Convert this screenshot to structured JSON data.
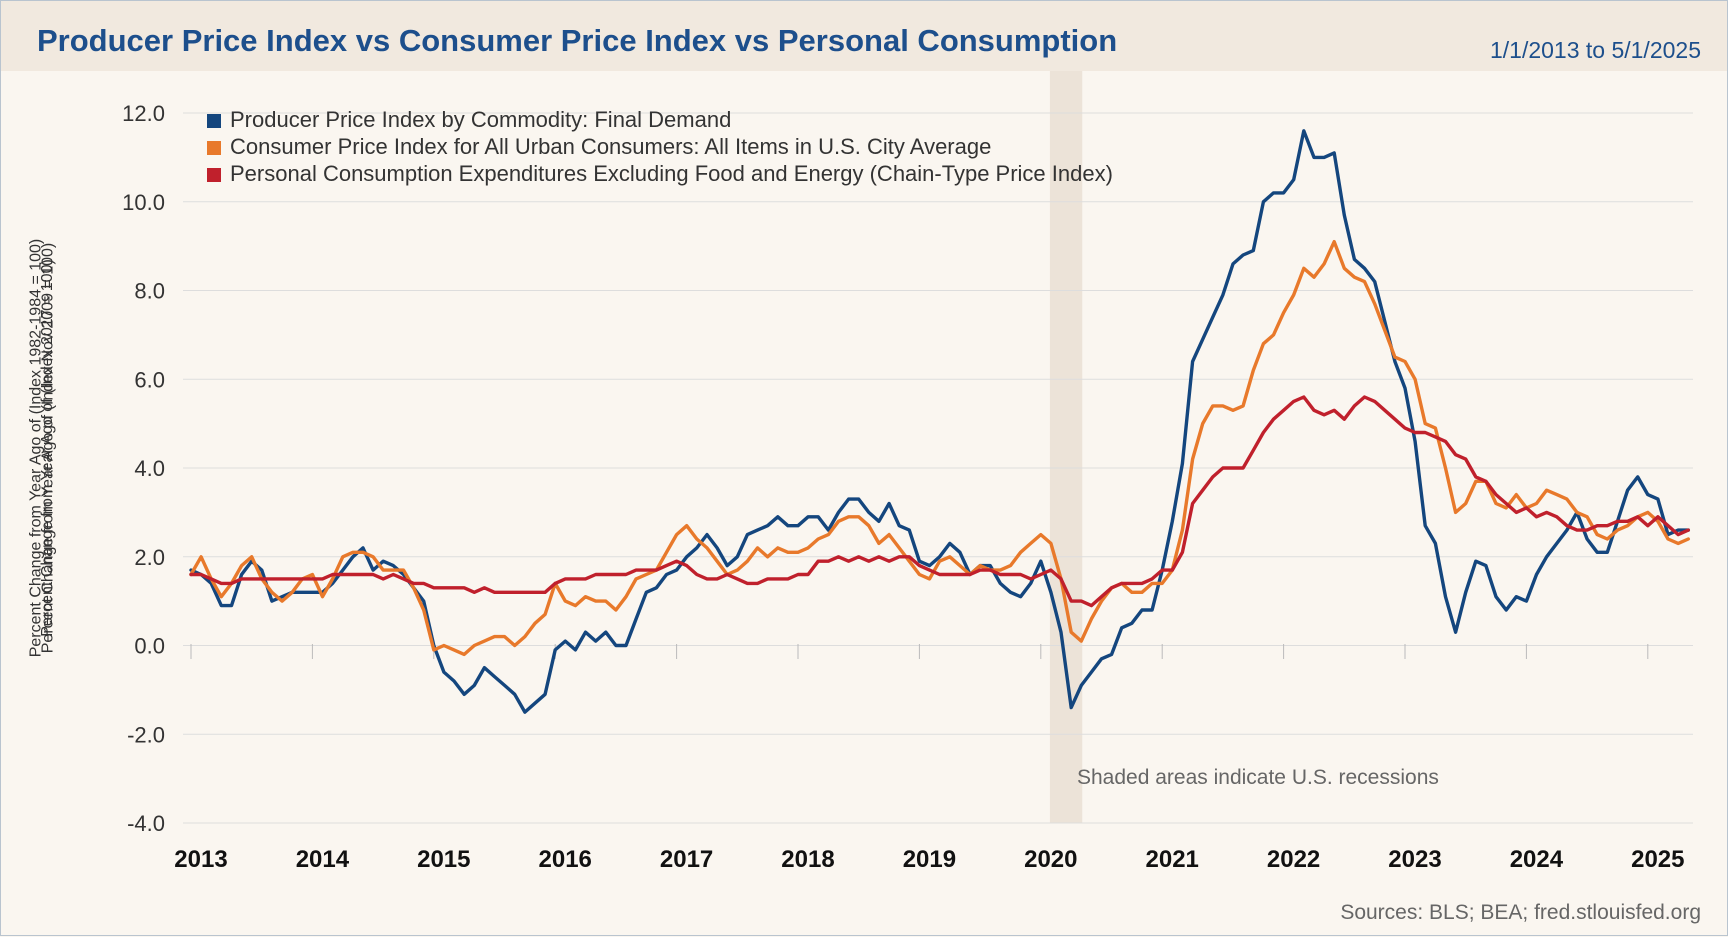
{
  "header": {
    "title": "Producer Price Index vs Consumer Price Index vs Personal Consumption",
    "date_range": "1/1/2013 to 5/1/2025"
  },
  "footer": {
    "source": "Sources: BLS; BEA; fred.stlouisfed.org"
  },
  "colors": {
    "ppi": "#14467e",
    "cpi": "#e8792b",
    "pce": "#c0202c",
    "recession": "#ece3d8",
    "grid": "#dddddd",
    "title": "#1d4f8c"
  },
  "chart_data": {
    "type": "line",
    "ylabels": [
      "Percent Change from Year Ago of (Index 1982-1984 = 100)",
      "Percent Change from Year Ago of (Index Nov 2009 = 100)",
      "Percent Change from Year Ago of (Index 2017 = 100)"
    ],
    "ylim": [
      -4.0,
      12.0
    ],
    "yticks": [
      12.0,
      10.0,
      8.0,
      6.0,
      4.0,
      2.0,
      0.0,
      -2.0,
      -4.0
    ],
    "ytick_labels": [
      "12.0",
      "10.0",
      "8.0",
      "6.0",
      "4.0",
      "2.0",
      "0.0",
      "-2.0",
      "-4.0"
    ],
    "xlim": [
      "2013-01",
      "2025-05"
    ],
    "x_ticks": [
      "2013",
      "2014",
      "2015",
      "2016",
      "2017",
      "2018",
      "2019",
      "2020",
      "2021",
      "2022",
      "2023",
      "2024",
      "2025"
    ],
    "grid": true,
    "legend_placement": "top-left",
    "recession": {
      "start": "2020-02",
      "end": "2020-04"
    },
    "annotation": "Shaded areas indicate U.S. recessions",
    "series": [
      {
        "name": "Producer Price Index by Commodity: Final Demand",
        "key": "ppi",
        "start": "2013-01",
        "frequency": "monthly",
        "values": [
          1.7,
          1.6,
          1.4,
          0.9,
          0.9,
          1.6,
          1.9,
          1.7,
          1.0,
          1.1,
          1.2,
          1.2,
          1.2,
          1.2,
          1.4,
          1.7,
          2.0,
          2.2,
          1.7,
          1.9,
          1.8,
          1.6,
          1.3,
          1.0,
          0.0,
          -0.6,
          -0.8,
          -1.1,
          -0.9,
          -0.5,
          -0.7,
          -0.9,
          -1.1,
          -1.5,
          -1.3,
          -1.1,
          -0.1,
          0.1,
          -0.1,
          0.3,
          0.1,
          0.3,
          0.0,
          0.0,
          0.6,
          1.2,
          1.3,
          1.6,
          1.7,
          2.0,
          2.2,
          2.5,
          2.2,
          1.8,
          2.0,
          2.5,
          2.6,
          2.7,
          2.9,
          2.7,
          2.7,
          2.9,
          2.9,
          2.6,
          3.0,
          3.3,
          3.3,
          3.0,
          2.8,
          3.2,
          2.7,
          2.6,
          1.9,
          1.8,
          2.0,
          2.3,
          2.1,
          1.6,
          1.8,
          1.8,
          1.4,
          1.2,
          1.1,
          1.4,
          1.9,
          1.2,
          0.3,
          -1.4,
          -0.9,
          -0.6,
          -0.3,
          -0.2,
          0.4,
          0.5,
          0.8,
          0.8,
          1.7,
          2.8,
          4.1,
          6.4,
          6.9,
          7.4,
          7.9,
          8.6,
          8.8,
          8.9,
          10.0,
          10.2,
          10.2,
          10.5,
          11.6,
          11.0,
          11.0,
          11.1,
          9.7,
          8.7,
          8.5,
          8.2,
          7.3,
          6.4,
          5.8,
          4.6,
          2.7,
          2.3,
          1.1,
          0.3,
          1.2,
          1.9,
          1.8,
          1.1,
          0.8,
          1.1,
          1.0,
          1.6,
          2.0,
          2.3,
          2.6,
          3.0,
          2.4,
          2.1,
          2.1,
          2.8,
          3.5,
          3.8,
          3.4,
          3.3,
          2.5,
          2.6,
          2.6
        ]
      },
      {
        "name": "Consumer Price Index for All Urban Consumers: All Items in U.S. City Average",
        "key": "cpi",
        "start": "2013-01",
        "frequency": "monthly",
        "values": [
          1.6,
          2.0,
          1.5,
          1.1,
          1.4,
          1.8,
          2.0,
          1.5,
          1.2,
          1.0,
          1.2,
          1.5,
          1.6,
          1.1,
          1.5,
          2.0,
          2.1,
          2.1,
          2.0,
          1.7,
          1.7,
          1.7,
          1.3,
          0.8,
          -0.1,
          0.0,
          -0.1,
          -0.2,
          0.0,
          0.1,
          0.2,
          0.2,
          0.0,
          0.2,
          0.5,
          0.7,
          1.4,
          1.0,
          0.9,
          1.1,
          1.0,
          1.0,
          0.8,
          1.1,
          1.5,
          1.6,
          1.7,
          2.1,
          2.5,
          2.7,
          2.4,
          2.2,
          1.9,
          1.6,
          1.7,
          1.9,
          2.2,
          2.0,
          2.2,
          2.1,
          2.1,
          2.2,
          2.4,
          2.5,
          2.8,
          2.9,
          2.9,
          2.7,
          2.3,
          2.5,
          2.2,
          1.9,
          1.6,
          1.5,
          1.9,
          2.0,
          1.8,
          1.6,
          1.8,
          1.7,
          1.7,
          1.8,
          2.1,
          2.3,
          2.5,
          2.3,
          1.5,
          0.3,
          0.1,
          0.6,
          1.0,
          1.3,
          1.4,
          1.2,
          1.2,
          1.4,
          1.4,
          1.7,
          2.6,
          4.2,
          5.0,
          5.4,
          5.4,
          5.3,
          5.4,
          6.2,
          6.8,
          7.0,
          7.5,
          7.9,
          8.5,
          8.3,
          8.6,
          9.1,
          8.5,
          8.3,
          8.2,
          7.7,
          7.1,
          6.5,
          6.4,
          6.0,
          5.0,
          4.9,
          4.0,
          3.0,
          3.2,
          3.7,
          3.7,
          3.2,
          3.1,
          3.4,
          3.1,
          3.2,
          3.5,
          3.4,
          3.3,
          3.0,
          2.9,
          2.5,
          2.4,
          2.6,
          2.7,
          2.9,
          3.0,
          2.8,
          2.4,
          2.3,
          2.4
        ]
      },
      {
        "name": "Personal Consumption Expenditures Excluding Food and Energy (Chain-Type Price Index)",
        "key": "pce",
        "start": "2013-01",
        "frequency": "monthly",
        "values": [
          1.6,
          1.6,
          1.5,
          1.4,
          1.4,
          1.5,
          1.5,
          1.5,
          1.5,
          1.5,
          1.5,
          1.5,
          1.5,
          1.5,
          1.6,
          1.6,
          1.6,
          1.6,
          1.6,
          1.5,
          1.6,
          1.5,
          1.4,
          1.4,
          1.3,
          1.3,
          1.3,
          1.3,
          1.2,
          1.3,
          1.2,
          1.2,
          1.2,
          1.2,
          1.2,
          1.2,
          1.4,
          1.5,
          1.5,
          1.5,
          1.6,
          1.6,
          1.6,
          1.6,
          1.7,
          1.7,
          1.7,
          1.8,
          1.9,
          1.8,
          1.6,
          1.5,
          1.5,
          1.6,
          1.5,
          1.4,
          1.4,
          1.5,
          1.5,
          1.5,
          1.6,
          1.6,
          1.9,
          1.9,
          2.0,
          1.9,
          2.0,
          1.9,
          2.0,
          1.9,
          2.0,
          2.0,
          1.8,
          1.7,
          1.6,
          1.6,
          1.6,
          1.6,
          1.7,
          1.7,
          1.6,
          1.6,
          1.6,
          1.5,
          1.6,
          1.7,
          1.5,
          1.0,
          1.0,
          0.9,
          1.1,
          1.3,
          1.4,
          1.4,
          1.4,
          1.5,
          1.7,
          1.7,
          2.1,
          3.2,
          3.5,
          3.8,
          4.0,
          4.0,
          4.0,
          4.4,
          4.8,
          5.1,
          5.3,
          5.5,
          5.6,
          5.3,
          5.2,
          5.3,
          5.1,
          5.4,
          5.6,
          5.5,
          5.3,
          5.1,
          4.9,
          4.8,
          4.8,
          4.7,
          4.6,
          4.3,
          4.2,
          3.8,
          3.7,
          3.4,
          3.2,
          3.0,
          3.1,
          2.9,
          3.0,
          2.9,
          2.7,
          2.6,
          2.6,
          2.7,
          2.7,
          2.8,
          2.8,
          2.9,
          2.7,
          2.9,
          2.7,
          2.5,
          2.6
        ]
      }
    ]
  }
}
